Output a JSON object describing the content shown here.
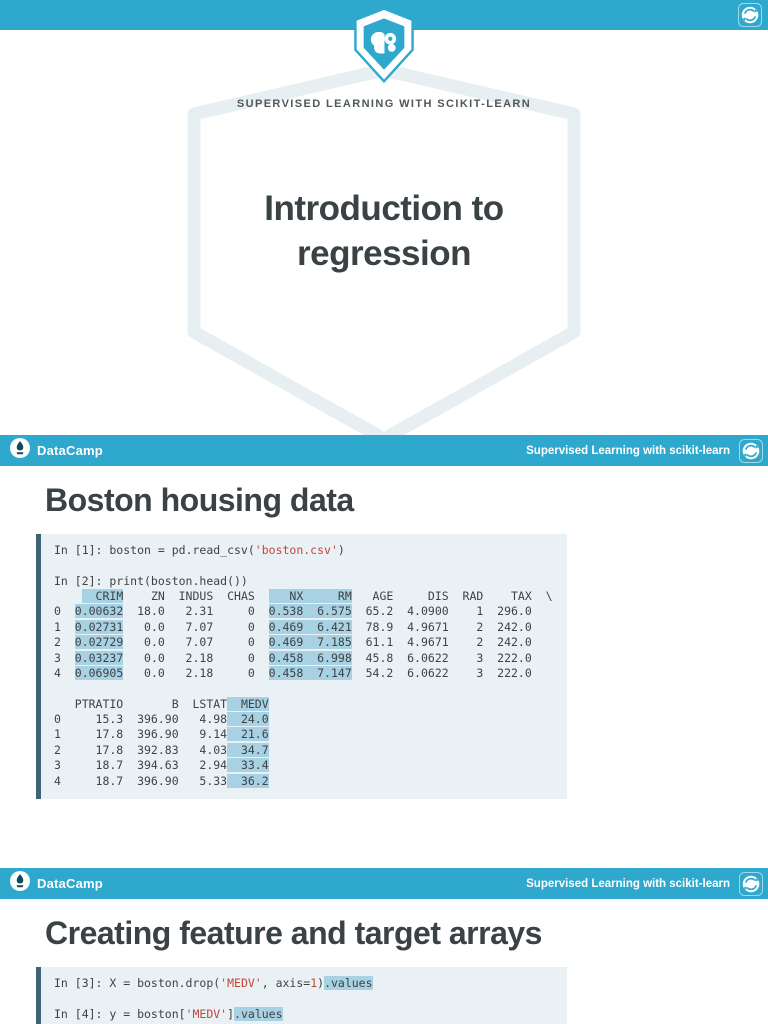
{
  "brand": {
    "name": "DataCamp",
    "course": "Supervised Learning with scikit-learn"
  },
  "title_slide": {
    "kicker": "SUPERVISED LEARNING WITH SCIKIT-LEARN",
    "title": "Introduction to regression",
    "title_lines": [
      "Introduction to",
      "regression"
    ]
  },
  "icons": {
    "corner": "sync-icon",
    "brand_logo": "datacamp-logo",
    "title_logo": "shield-brain-logo",
    "outline": "big-shield-outline"
  },
  "colors": {
    "teal": "#2fa8cd",
    "code_background": "#eaf1f5",
    "code_border": "#3e6374",
    "code_highlight": "#a8d1e4",
    "string_red": "#c2453a",
    "title_text": "#3b4245",
    "shield_outline": "#e8eff3"
  },
  "slides": [
    {
      "title": "Boston housing data",
      "code": [
        [
          {
            "t": "In [1]: boston = pd.read_csv(",
            "s": "p"
          },
          {
            "t": "'boston.csv'",
            "s": "str"
          },
          {
            "t": ")",
            "s": "p"
          }
        ],
        [],
        [
          {
            "t": "In [2]: print(boston.head())",
            "s": "p"
          }
        ],
        [
          {
            "t": "    ",
            "s": "p"
          },
          {
            "t": "  CRIM",
            "s": "hl"
          },
          {
            "t": "    ZN  INDUS  CHAS  ",
            "s": "p"
          },
          {
            "t": "   NX     RM",
            "s": "hl"
          },
          {
            "t": "   AGE     DIS  RAD    TAX  \\",
            "s": "p"
          }
        ],
        [
          {
            "t": "0  ",
            "s": "p"
          },
          {
            "t": "0.00632",
            "s": "hl"
          },
          {
            "t": "  18.0   2.31     0  ",
            "s": "p"
          },
          {
            "t": "0.538  6.575",
            "s": "hl"
          },
          {
            "t": "  65.2  4.0900    1  296.0",
            "s": "p"
          }
        ],
        [
          {
            "t": "1  ",
            "s": "p"
          },
          {
            "t": "0.02731",
            "s": "hl"
          },
          {
            "t": "   0.0   7.07     0  ",
            "s": "p"
          },
          {
            "t": "0.469  6.421",
            "s": "hl"
          },
          {
            "t": "  78.9  4.9671    2  242.0",
            "s": "p"
          }
        ],
        [
          {
            "t": "2  ",
            "s": "p"
          },
          {
            "t": "0.02729",
            "s": "hl"
          },
          {
            "t": "   0.0   7.07     0  ",
            "s": "p"
          },
          {
            "t": "0.469  7.185",
            "s": "hl"
          },
          {
            "t": "  61.1  4.9671    2  242.0",
            "s": "p"
          }
        ],
        [
          {
            "t": "3  ",
            "s": "p"
          },
          {
            "t": "0.03237",
            "s": "hl"
          },
          {
            "t": "   0.0   2.18     0  ",
            "s": "p"
          },
          {
            "t": "0.458  6.998",
            "s": "hl"
          },
          {
            "t": "  45.8  6.0622    3  222.0",
            "s": "p"
          }
        ],
        [
          {
            "t": "4  ",
            "s": "p"
          },
          {
            "t": "0.06905",
            "s": "hl"
          },
          {
            "t": "   0.0   2.18     0  ",
            "s": "p"
          },
          {
            "t": "0.458  7.147",
            "s": "hl"
          },
          {
            "t": "  54.2  6.0622    3  222.0",
            "s": "p"
          }
        ],
        [],
        [
          {
            "t": "   PTRATIO       B  LSTAT",
            "s": "p"
          },
          {
            "t": "  MEDV",
            "s": "hl"
          }
        ],
        [
          {
            "t": "0     15.3  396.90   4.98",
            "s": "p"
          },
          {
            "t": "  24.0",
            "s": "hl"
          }
        ],
        [
          {
            "t": "1     17.8  396.90   9.14",
            "s": "p"
          },
          {
            "t": "  21.6",
            "s": "hl"
          }
        ],
        [
          {
            "t": "2     17.8  392.83   4.03",
            "s": "p"
          },
          {
            "t": "  34.7",
            "s": "hl"
          }
        ],
        [
          {
            "t": "3     18.7  394.63   2.94",
            "s": "p"
          },
          {
            "t": "  33.4",
            "s": "hl"
          }
        ],
        [
          {
            "t": "4     18.7  396.90   5.33",
            "s": "p"
          },
          {
            "t": "  36.2",
            "s": "hl"
          }
        ]
      ]
    },
    {
      "title": "Creating feature and target arrays",
      "code": [
        [
          {
            "t": "In [3]: X = boston.drop(",
            "s": "p"
          },
          {
            "t": "'MEDV'",
            "s": "str"
          },
          {
            "t": ", axis=",
            "s": "p"
          },
          {
            "t": "1",
            "s": "num"
          },
          {
            "t": ")",
            "s": "p"
          },
          {
            "t": ".values",
            "s": "hl"
          }
        ],
        [],
        [
          {
            "t": "In [4]: y = boston[",
            "s": "p"
          },
          {
            "t": "'MEDV'",
            "s": "str"
          },
          {
            "t": "]",
            "s": "p"
          },
          {
            "t": ".values",
            "s": "hl"
          }
        ]
      ]
    }
  ]
}
